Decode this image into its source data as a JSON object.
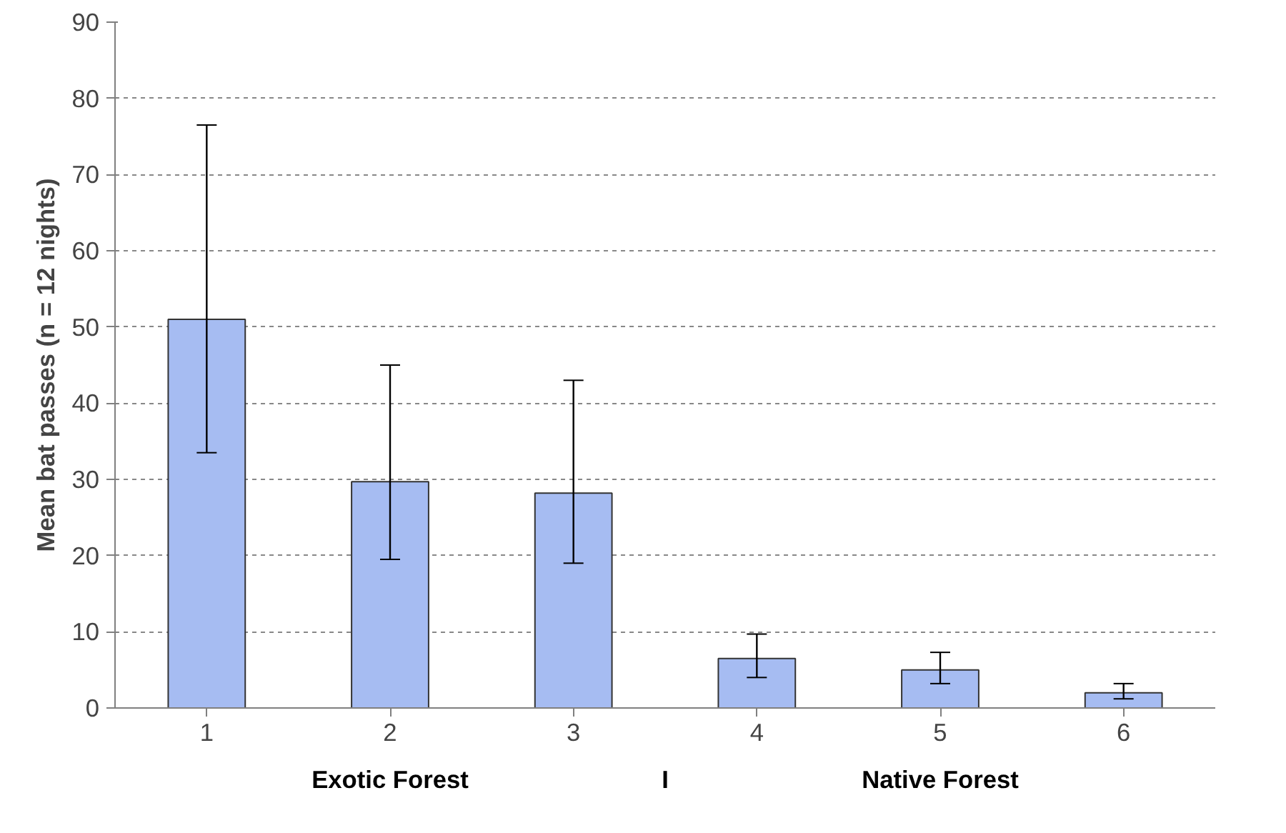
{
  "chart_data": {
    "type": "bar",
    "ylabel": "Mean bat passes (n = 12 nights)",
    "categories": [
      "1",
      "2",
      "3",
      "4",
      "5",
      "6"
    ],
    "values": [
      51,
      29.7,
      28.2,
      6.5,
      5,
      2
    ],
    "errors": [
      [
        33.5,
        76.5
      ],
      [
        19.5,
        45
      ],
      [
        19,
        43
      ],
      [
        4,
        9.7
      ],
      [
        3.2,
        7.3
      ],
      [
        1.2,
        3.2
      ]
    ],
    "color": "#a6bcf2",
    "ylim": [
      0,
      90
    ],
    "yticks": [
      0,
      10,
      20,
      30,
      40,
      50,
      60,
      70,
      80,
      90
    ],
    "grid": "y",
    "annotations": [
      "Exotic Forest",
      "I",
      "Native Forest"
    ]
  }
}
